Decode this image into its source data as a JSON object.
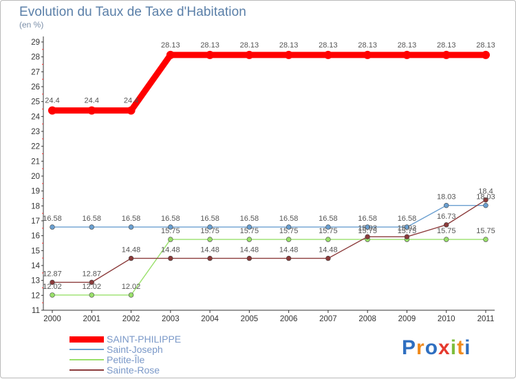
{
  "chart_data": {
    "type": "line",
    "title": "Evolution du Taux de Taxe d'Habitation",
    "subtitle": "(en %)",
    "xlabel": "",
    "ylabel": "",
    "categories": [
      "2000",
      "2001",
      "2002",
      "2003",
      "2004",
      "2005",
      "2006",
      "2007",
      "2008",
      "2009",
      "2010",
      "2011"
    ],
    "ylim": [
      11,
      29
    ],
    "yticks": [
      "11",
      "12",
      "13",
      "14",
      "15",
      "16",
      "17",
      "18",
      "19",
      "20",
      "21",
      "22",
      "23",
      "24",
      "25",
      "26",
      "27",
      "28",
      "29"
    ],
    "grid": false,
    "legend_position": "bottom-left",
    "series": [
      {
        "name": "SAINT-PHILIPPE",
        "color": "#ff0000",
        "values": [
          24.4,
          24.4,
          24.4,
          28.13,
          28.13,
          28.13,
          28.13,
          28.13,
          28.13,
          28.13,
          28.13,
          28.13
        ],
        "labels": [
          "24.4",
          "24.4",
          "24.4",
          "28.13",
          "28.13",
          "28.13",
          "28.13",
          "28.13",
          "28.13",
          "28.13",
          "28.13",
          "28.13"
        ]
      },
      {
        "name": "Saint-Joseph",
        "color": "#6a9fd0",
        "values": [
          16.58,
          16.58,
          16.58,
          16.58,
          16.58,
          16.58,
          16.58,
          16.58,
          16.58,
          16.58,
          18.03,
          18.03
        ],
        "labels": [
          "16.58",
          "16.58",
          "16.58",
          "16.58",
          "16.58",
          "16.58",
          "16.58",
          "16.58",
          "16.58",
          "16.58",
          "18.03",
          "18.03"
        ]
      },
      {
        "name": "Petite-Île",
        "color": "#99e06a",
        "values": [
          12.02,
          12.02,
          12.02,
          15.75,
          15.75,
          15.75,
          15.75,
          15.75,
          15.75,
          15.75,
          15.75,
          15.75
        ],
        "labels": [
          "12.02",
          "12.02",
          "12.02",
          "15.75",
          "15.75",
          "15.75",
          "15.75",
          "15.75",
          "15.75",
          "15.75",
          "15.75",
          "15.75"
        ]
      },
      {
        "name": "Sainte-Rose",
        "color": "#8b3a3a",
        "values": [
          12.87,
          12.87,
          14.48,
          14.48,
          14.48,
          14.48,
          14.48,
          14.48,
          15.93,
          15.93,
          16.73,
          18.4
        ],
        "labels": [
          "12.87",
          "12.87",
          "14.48",
          "14.48",
          "14.48",
          "14.48",
          "14.48",
          "14.48",
          "15.93",
          "15.93",
          "16.73",
          "18.4"
        ]
      }
    ]
  },
  "logo": {
    "letters": [
      "P",
      "r",
      "o",
      "x",
      "i",
      "t",
      "i"
    ],
    "colors": [
      "#2f6fc0",
      "#f08a1c",
      "#2f6fc0",
      "#e63a2e",
      "#7dbd3c",
      "#f08a1c",
      "#2f6fc0"
    ]
  }
}
